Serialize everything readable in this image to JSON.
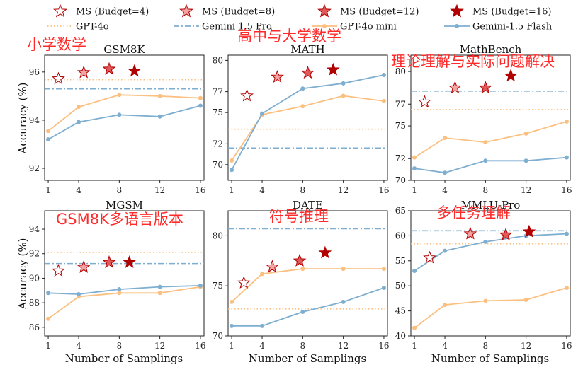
{
  "legend": {
    "entries": [
      {
        "label": "MS (Budget=4)",
        "kind": "star",
        "fill": "#ffffff"
      },
      {
        "label": "MS (Budget=8)",
        "kind": "star",
        "fill": "#f4a3a3"
      },
      {
        "label": "MS (Budget=12)",
        "kind": "star",
        "fill": "#e05a5a"
      },
      {
        "label": "MS (Budget=16)",
        "kind": "star",
        "fill": "#b00000"
      },
      {
        "label": "GPT-4o",
        "kind": "dotted"
      },
      {
        "label": "Gemini 1.5 Pro",
        "kind": "dashdot"
      },
      {
        "label": "GPT-4o mini",
        "kind": "orange-line"
      },
      {
        "label": "Gemini-1.5 Flash",
        "kind": "blue-line"
      }
    ]
  },
  "colors": {
    "orange": "#fbbf7f",
    "blue": "#7eaed0",
    "star_edge": "#b00000",
    "annotation": "#ff2a2a"
  },
  "labels": {
    "y": "Accuracy (%)",
    "x": "Number of Samplings"
  },
  "chart_data": [
    {
      "type": "line",
      "title": "GSM8K",
      "annotation": "小学数学",
      "x": [
        1,
        4,
        8,
        12,
        16
      ],
      "ylim": [
        91.5,
        96.7
      ],
      "yticks": [
        92,
        94,
        96
      ],
      "series": [
        {
          "name": "GPT-4o mini",
          "values": [
            93.55,
            94.55,
            95.05,
            95.0,
            94.92
          ]
        },
        {
          "name": "Gemini-1.5 Flash",
          "values": [
            93.2,
            93.92,
            94.22,
            94.15,
            94.6
          ]
        }
      ],
      "hlines": [
        {
          "name": "GPT-4o",
          "value": 95.68
        },
        {
          "name": "Gemini 1.5 Pro",
          "value": 95.3
        }
      ],
      "stars": [
        {
          "budget": 4,
          "x": 2,
          "y": 95.72
        },
        {
          "budget": 8,
          "x": 4.5,
          "y": 95.98
        },
        {
          "budget": 12,
          "x": 7,
          "y": 96.12
        },
        {
          "budget": 16,
          "x": 9.5,
          "y": 96.04
        }
      ]
    },
    {
      "type": "line",
      "title": "MATH",
      "annotation": "高中与大学数学",
      "x": [
        1,
        4,
        8,
        12,
        16
      ],
      "ylim": [
        68.5,
        80.5
      ],
      "yticks": [
        70,
        72,
        75,
        77,
        80
      ],
      "series": [
        {
          "name": "GPT-4o mini",
          "values": [
            70.4,
            74.8,
            75.6,
            76.6,
            76.1
          ]
        },
        {
          "name": "Gemini-1.5 Flash",
          "values": [
            69.5,
            74.9,
            77.3,
            77.8,
            78.6
          ]
        }
      ],
      "hlines": [
        {
          "name": "GPT-4o",
          "value": 73.4
        },
        {
          "name": "Gemini 1.5 Pro",
          "value": 71.6
        }
      ],
      "stars": [
        {
          "budget": 4,
          "x": 2.5,
          "y": 76.6
        },
        {
          "budget": 8,
          "x": 5.5,
          "y": 78.4
        },
        {
          "budget": 12,
          "x": 8.5,
          "y": 78.8
        },
        {
          "budget": 16,
          "x": 11,
          "y": 79.1
        }
      ]
    },
    {
      "type": "line",
      "title": "MathBench",
      "annotation": "理论理解与实际问题解决",
      "x": [
        1,
        4,
        8,
        12,
        16
      ],
      "ylim": [
        70,
        81.5
      ],
      "yticks": [
        70,
        72,
        75,
        77,
        80
      ],
      "series": [
        {
          "name": "GPT-4o mini",
          "values": [
            72.1,
            73.9,
            73.5,
            74.3,
            75.4
          ]
        },
        {
          "name": "Gemini-1.5 Flash",
          "values": [
            71.1,
            70.7,
            71.8,
            71.8,
            72.1
          ]
        }
      ],
      "hlines": [
        {
          "name": "GPT-4o",
          "value": 76.5
        },
        {
          "name": "Gemini 1.5 Pro",
          "value": 78.2
        }
      ],
      "stars": [
        {
          "budget": 4,
          "x": 2,
          "y": 77.2
        },
        {
          "budget": 8,
          "x": 5,
          "y": 78.5
        },
        {
          "budget": 12,
          "x": 8,
          "y": 78.5
        },
        {
          "budget": 16,
          "x": 10.5,
          "y": 79.6
        }
      ]
    },
    {
      "type": "line",
      "title": "MGSM",
      "annotation": "GSM8K多语言版本",
      "x": [
        1,
        4,
        8,
        12,
        16
      ],
      "ylim": [
        85.3,
        95.5
      ],
      "yticks": [
        86,
        88,
        90,
        92,
        94
      ],
      "series": [
        {
          "name": "GPT-4o mini",
          "values": [
            86.7,
            88.5,
            88.8,
            88.8,
            89.3
          ]
        },
        {
          "name": "Gemini-1.5 Flash",
          "values": [
            88.8,
            88.7,
            89.1,
            89.3,
            89.4
          ]
        }
      ],
      "hlines": [
        {
          "name": "GPT-4o",
          "value": 92.1
        },
        {
          "name": "Gemini 1.5 Pro",
          "value": 91.2
        }
      ],
      "stars": [
        {
          "budget": 4,
          "x": 2,
          "y": 90.6
        },
        {
          "budget": 8,
          "x": 4.5,
          "y": 90.9
        },
        {
          "budget": 12,
          "x": 7,
          "y": 91.3
        },
        {
          "budget": 16,
          "x": 9,
          "y": 91.3
        }
      ]
    },
    {
      "type": "line",
      "title": "DATE",
      "annotation": "符号推理",
      "x": [
        1,
        4,
        8,
        12,
        16
      ],
      "ylim": [
        70,
        82.5
      ],
      "yticks": [
        70,
        75,
        80
      ],
      "series": [
        {
          "name": "GPT-4o mini",
          "values": [
            73.4,
            76.2,
            76.7,
            76.7,
            76.7
          ]
        },
        {
          "name": "Gemini-1.5 Flash",
          "values": [
            71,
            71,
            72.4,
            73.4,
            74.8
          ]
        }
      ],
      "hlines": [
        {
          "name": "GPT-4o",
          "value": 72.7
        },
        {
          "name": "Gemini 1.5 Pro",
          "value": 80.7
        }
      ],
      "stars": [
        {
          "budget": 4,
          "x": 2.2,
          "y": 75.3
        },
        {
          "budget": 8,
          "x": 5,
          "y": 76.9
        },
        {
          "budget": 12,
          "x": 7.7,
          "y": 77.5
        },
        {
          "budget": 16,
          "x": 10.2,
          "y": 78.3
        }
      ]
    },
    {
      "type": "line",
      "title": "MMLU-Pro",
      "annotation": "多任务理解",
      "x": [
        1,
        4,
        8,
        12,
        16
      ],
      "ylim": [
        40,
        65
      ],
      "yticks": [
        40,
        45,
        50,
        55,
        60,
        65
      ],
      "series": [
        {
          "name": "GPT-4o mini",
          "values": [
            41.6,
            46.2,
            47,
            47.2,
            49.6
          ]
        },
        {
          "name": "Gemini-1.5 Flash",
          "values": [
            53,
            57,
            58.8,
            60,
            60.4
          ]
        }
      ],
      "hlines": [
        {
          "name": "GPT-4o",
          "value": 58.4
        },
        {
          "name": "Gemini 1.5 Pro",
          "value": 61
        }
      ],
      "stars": [
        {
          "budget": 4,
          "x": 2.5,
          "y": 55.6
        },
        {
          "budget": 8,
          "x": 6.5,
          "y": 60.4
        },
        {
          "budget": 12,
          "x": 10,
          "y": 60.2
        },
        {
          "budget": 16,
          "x": 12.3,
          "y": 60.8
        }
      ]
    }
  ]
}
